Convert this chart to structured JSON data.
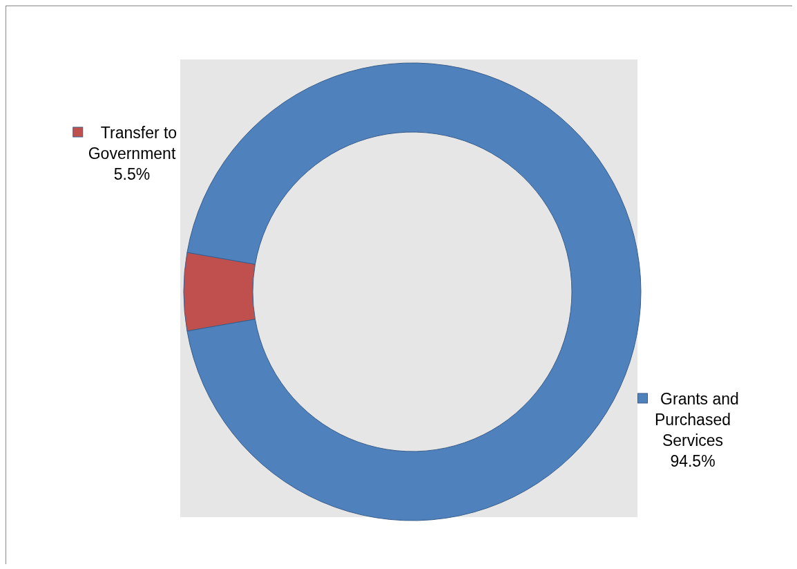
{
  "chart_data": {
    "type": "donut",
    "categories": [
      "Transfer to Government",
      "Grants and Purchased Services"
    ],
    "values": [
      5.5,
      94.5
    ],
    "colors": [
      "#c0504d",
      "#4f81bd"
    ],
    "value_labels": [
      "5.5%",
      "94.5%"
    ],
    "legend": "left"
  }
}
